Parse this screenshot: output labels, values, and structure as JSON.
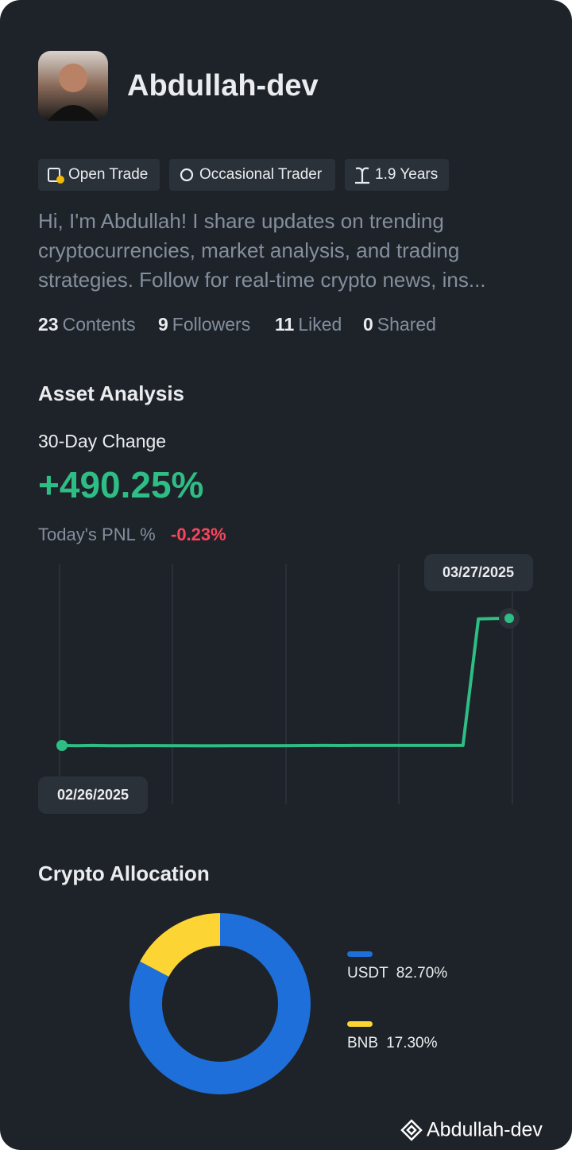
{
  "profile": {
    "name": "Abdullah-dev",
    "tags": [
      "Open Trade",
      "Occasional Trader",
      "1.9 Years"
    ],
    "bio": "Hi, I'm Abdullah! I share updates on trending cryptocurrencies, market analysis, and trading strategies. Follow for real-time crypto news, ins...",
    "stats": [
      {
        "value": 23,
        "label": "Contents"
      },
      {
        "value": 9,
        "label": "Followers"
      },
      {
        "value": 11,
        "label": "Liked"
      },
      {
        "value": 0,
        "label": "Shared"
      }
    ]
  },
  "asset_analysis": {
    "title": "Asset Analysis",
    "change_label": "30-Day Change",
    "change": "+490.25%",
    "pnl_label": "Today's PNL %",
    "pnl": "-0.23%"
  },
  "chart_data": [
    {
      "type": "line",
      "x": [
        "02/26/2025",
        null,
        null,
        null,
        null,
        null,
        null,
        null,
        null,
        null,
        null,
        null,
        null,
        null,
        null,
        null,
        null,
        null,
        null,
        null,
        null,
        null,
        null,
        null,
        null,
        null,
        null,
        null,
        null,
        "03/27/2025"
      ],
      "series": [
        {
          "color": "#2ebd85",
          "values": [
            0,
            -0.5,
            0.3,
            -0.6,
            -0.5,
            -0.4,
            -0.4,
            -0.5,
            -0.6,
            -1.2,
            -1.3,
            -1.0,
            -0.8,
            -0.6,
            -0.5,
            -0.3,
            -0.1,
            0.2,
            0.1,
            0.3,
            0.4,
            0.3,
            0.4,
            0.4,
            0.3,
            0.3,
            0.3,
            488.0,
            489.5,
            490.25
          ]
        }
      ]
    },
    {
      "type": "pie",
      "title": "Crypto Allocation",
      "categories": [
        "USDT",
        "BNB"
      ],
      "values": [
        82.7,
        17.3
      ],
      "value_labels": [
        "82.70%",
        "17.30%"
      ],
      "colors": [
        "#1e6fd9",
        "#fcd535"
      ]
    }
  ],
  "watermark": "Abdullah-dev"
}
